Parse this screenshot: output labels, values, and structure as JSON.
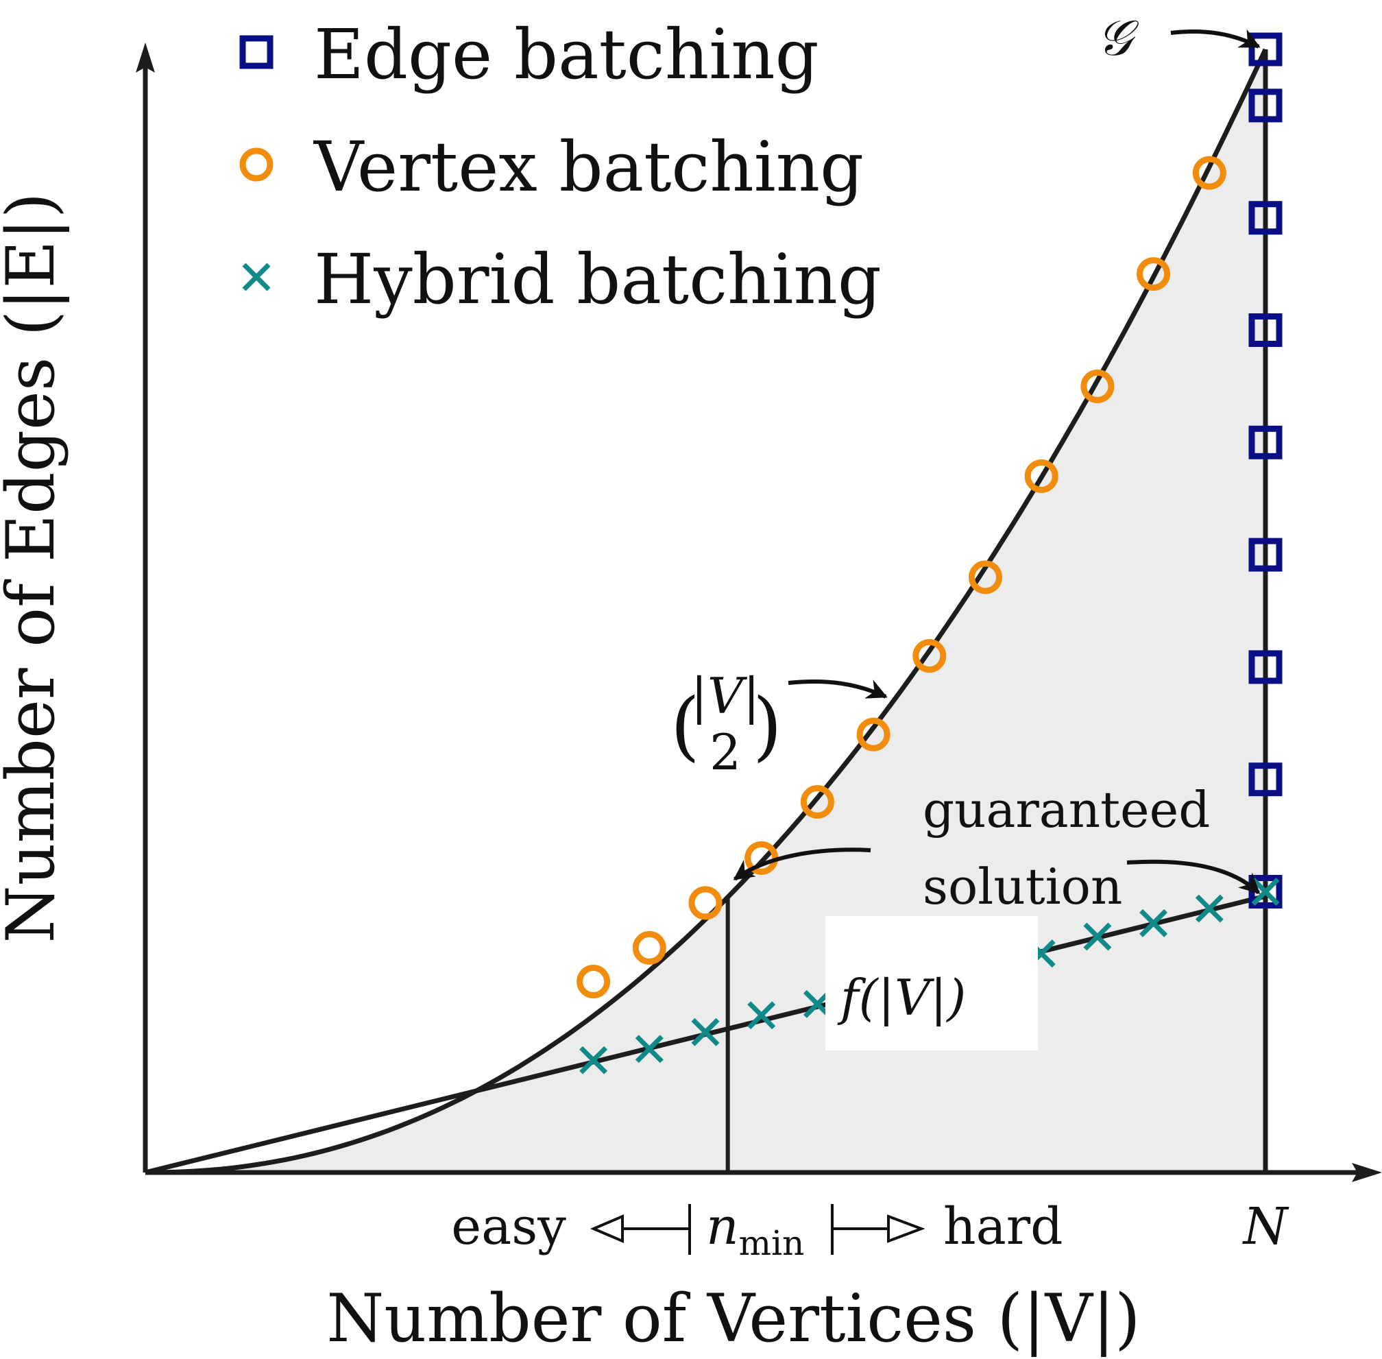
{
  "colors": {
    "edge": "#0a0f86",
    "vertex": "#f28c0c",
    "hybrid": "#0f8a88",
    "curve": "#1d1d1d",
    "fill": "#ececec"
  },
  "chart_data": {
    "type": "scatter",
    "xlabel": "Number of Vertices (|V|)",
    "ylabel": "Number of Edges (|E|)",
    "xlim": [
      0,
      1
    ],
    "ylim": [
      0,
      1
    ],
    "x_ticks": {
      "easy": "easy",
      "n_min": "n",
      "n_min_sub": "min",
      "hard": "hard",
      "N": "N"
    },
    "legend": {
      "position": "top-left",
      "entries": [
        {
          "series": "edge",
          "marker": "square",
          "label": "Edge batching"
        },
        {
          "series": "vertex",
          "marker": "circle",
          "label": "Vertex batching"
        },
        {
          "series": "hybrid",
          "marker": "x",
          "label": "Hybrid batching"
        }
      ]
    },
    "annotations": {
      "graph_label": "𝒢",
      "binomial_top": "|V|",
      "binomial_bottom": "2",
      "guaranteed_line1": "guaranteed",
      "guaranteed_line2": "solution",
      "f_label": "f(|V|)"
    },
    "curves": {
      "binomial_exponent": 2.15,
      "linear_end": [
        1.0,
        0.246
      ],
      "n_min": 0.52
    },
    "series": [
      {
        "name": "Edge batching",
        "key": "edge",
        "x": [
          1,
          1,
          1,
          1,
          1,
          1,
          1,
          1,
          1
        ],
        "y": [
          1.0,
          0.95,
          0.85,
          0.75,
          0.65,
          0.55,
          0.45,
          0.35,
          0.25
        ]
      },
      {
        "name": "Vertex batching",
        "key": "vertex",
        "x": [
          0.4,
          0.45,
          0.5,
          0.55,
          0.6,
          0.65,
          0.7,
          0.75,
          0.8,
          0.85,
          0.9,
          0.95
        ],
        "y": [
          0.17,
          0.2,
          0.24,
          0.28,
          0.33,
          0.39,
          0.46,
          0.53,
          0.62,
          0.7,
          0.8,
          0.89
        ]
      },
      {
        "name": "Hybrid batching",
        "key": "hybrid",
        "x": [
          0.4,
          0.45,
          0.5,
          0.55,
          0.6,
          0.8,
          0.85,
          0.9,
          0.95,
          1.0
        ],
        "y": [
          0.1,
          0.11,
          0.125,
          0.14,
          0.15,
          0.195,
          0.21,
          0.222,
          0.235,
          0.25
        ]
      }
    ]
  }
}
